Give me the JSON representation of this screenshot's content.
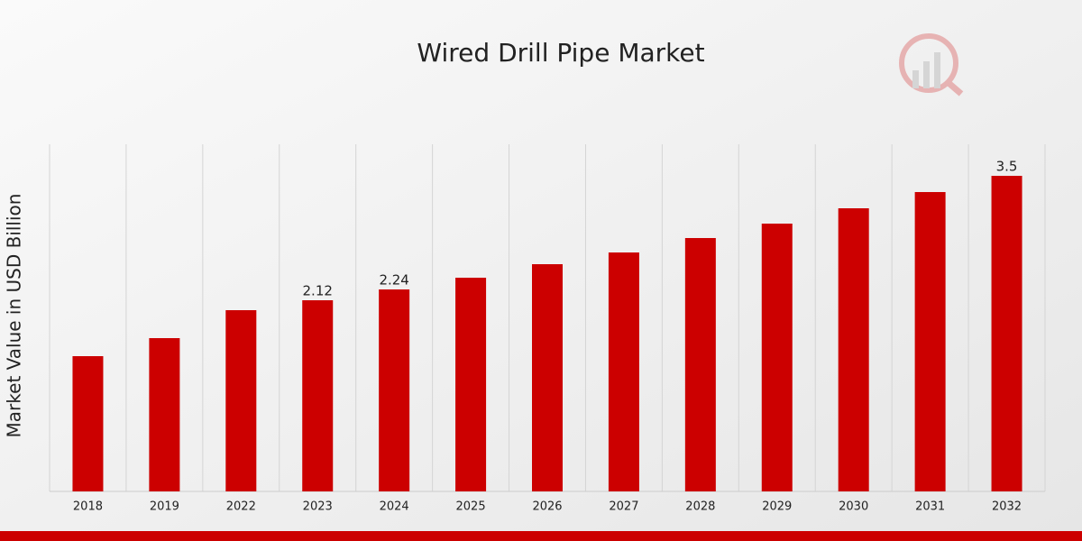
{
  "chart_data": {
    "type": "bar",
    "title": "Wired Drill Pipe Market",
    "y_label": "Market Value in USD Billion",
    "categories": [
      "2018",
      "2019",
      "2022",
      "2023",
      "2024",
      "2025",
      "2026",
      "2027",
      "2028",
      "2029",
      "2030",
      "2031",
      "2032"
    ],
    "values": [
      1.5,
      1.7,
      2.01,
      2.12,
      2.24,
      2.37,
      2.52,
      2.65,
      2.81,
      2.97,
      3.14,
      3.32,
      3.5
    ],
    "value_labels": [
      null,
      null,
      null,
      "2.12",
      "2.24",
      null,
      null,
      null,
      null,
      null,
      null,
      null,
      "3.5"
    ],
    "color": "#cc0000",
    "ylim": [
      0,
      3.85
    ],
    "grid": true
  }
}
